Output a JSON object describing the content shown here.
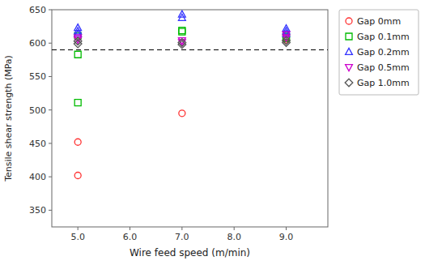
{
  "chart_data": {
    "type": "scatter",
    "xlabel": "Wire feed speed (m/min)",
    "ylabel": "Tensile shear strength (MPa)",
    "xlim": [
      4.5,
      9.8
    ],
    "ylim": [
      325,
      650
    ],
    "xticks": [
      {
        "value": 5.0,
        "label": "5.0"
      },
      {
        "value": 6.0,
        "label": "6.0"
      },
      {
        "value": 7.0,
        "label": "7.0"
      },
      {
        "value": 8.0,
        "label": "8.0"
      },
      {
        "value": 9.0,
        "label": "9.0"
      }
    ],
    "yticks": [
      350,
      400,
      450,
      500,
      550,
      600,
      650
    ],
    "hline_y": 590,
    "grid": false,
    "legend": "right",
    "series": [
      {
        "name": "Gap 0mm",
        "color": "#ff3333",
        "marker": "circle",
        "x": [
          5.0,
          5.0,
          7.0,
          9.0,
          9.0
        ],
        "values": [
          452,
          402,
          495,
          605,
          608
        ]
      },
      {
        "name": "Gap 0.1mm",
        "color": "#00bb00",
        "marker": "square",
        "x": [
          5.0,
          5.0,
          5.0,
          7.0,
          7.0,
          9.0,
          9.0
        ],
        "values": [
          511,
          583,
          611,
          617,
          619,
          607,
          610
        ]
      },
      {
        "name": "Gap 0.2mm",
        "color": "#3333ff",
        "marker": "triangle-up",
        "x": [
          5.0,
          5.0,
          5.0,
          7.0,
          7.0,
          9.0,
          9.0,
          9.0
        ],
        "values": [
          618,
          623,
          614,
          638,
          643,
          614,
          618,
          622
        ]
      },
      {
        "name": "Gap 0.5mm",
        "color": "#cc00cc",
        "marker": "triangle-down",
        "x": [
          5.0,
          5.0,
          7.0,
          7.0,
          9.0,
          9.0
        ],
        "values": [
          605,
          608,
          601,
          604,
          608,
          613
        ]
      },
      {
        "name": "Gap 1.0mm",
        "color": "#555555",
        "marker": "diamond",
        "x": [
          5.0,
          5.0,
          7.0,
          7.0,
          9.0,
          9.0
        ],
        "values": [
          599,
          603,
          598,
          601,
          601,
          604
        ]
      }
    ]
  }
}
